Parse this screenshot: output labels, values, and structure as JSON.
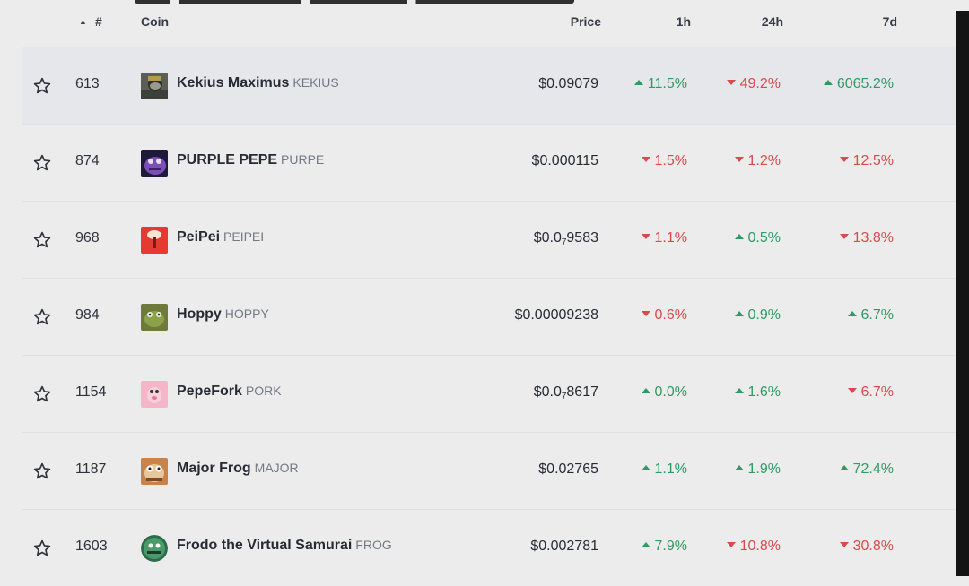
{
  "header": {
    "sort_indicator": "▲",
    "rank": "#",
    "coin": "Coin",
    "price": "Price",
    "h1": "1h",
    "h24": "24h",
    "d7": "7d"
  },
  "colors": {
    "up": "#2f9a63",
    "down": "#d84a4d",
    "accent_row": "#e5e7ea"
  },
  "rows": [
    {
      "rank": "613",
      "name": "Kekius Maximus",
      "symbol": "KEKIUS",
      "price": "$0.09079",
      "h1": "11.5%",
      "h1_dir": "up",
      "h24": "49.2%",
      "h24_dir": "down",
      "d7": "6065.2%",
      "d7_dir": "up",
      "logo_icon": "kekius-logo-icon"
    },
    {
      "rank": "874",
      "name": "PURPLE PEPE",
      "symbol": "PURPE",
      "price": "$0.000115",
      "h1": "1.5%",
      "h1_dir": "down",
      "h24": "1.2%",
      "h24_dir": "down",
      "d7": "12.5%",
      "d7_dir": "down",
      "logo_icon": "purple-pepe-logo-icon"
    },
    {
      "rank": "968",
      "name": "PeiPei",
      "symbol": "PEIPEI",
      "price_prefix": "$0.0",
      "price_sub": "7",
      "price_rest": "9583",
      "h1": "1.1%",
      "h1_dir": "down",
      "h24": "0.5%",
      "h24_dir": "up",
      "d7": "13.8%",
      "d7_dir": "down",
      "logo_icon": "peipei-logo-icon"
    },
    {
      "rank": "984",
      "name": "Hoppy",
      "symbol": "HOPPY",
      "price": "$0.00009238",
      "h1": "0.6%",
      "h1_dir": "down",
      "h24": "0.9%",
      "h24_dir": "up",
      "d7": "6.7%",
      "d7_dir": "up",
      "logo_icon": "hoppy-logo-icon"
    },
    {
      "rank": "1154",
      "name": "PepeFork",
      "symbol": "PORK",
      "price_prefix": "$0.0",
      "price_sub": "7",
      "price_rest": "8617",
      "h1": "0.0%",
      "h1_dir": "up",
      "h24": "1.6%",
      "h24_dir": "up",
      "d7": "6.7%",
      "d7_dir": "down",
      "logo_icon": "pepefork-logo-icon"
    },
    {
      "rank": "1187",
      "name": "Major Frog",
      "symbol": "MAJOR",
      "price": "$0.02765",
      "h1": "1.1%",
      "h1_dir": "up",
      "h24": "1.9%",
      "h24_dir": "up",
      "d7": "72.4%",
      "d7_dir": "up",
      "logo_icon": "major-frog-logo-icon"
    },
    {
      "rank": "1603",
      "name": "Frodo the Virtual Samurai",
      "symbol": "FROG",
      "price": "$0.002781",
      "h1": "7.9%",
      "h1_dir": "up",
      "h24": "10.8%",
      "h24_dir": "down",
      "d7": "30.8%",
      "d7_dir": "down",
      "logo_icon": "frodo-logo-icon"
    }
  ]
}
